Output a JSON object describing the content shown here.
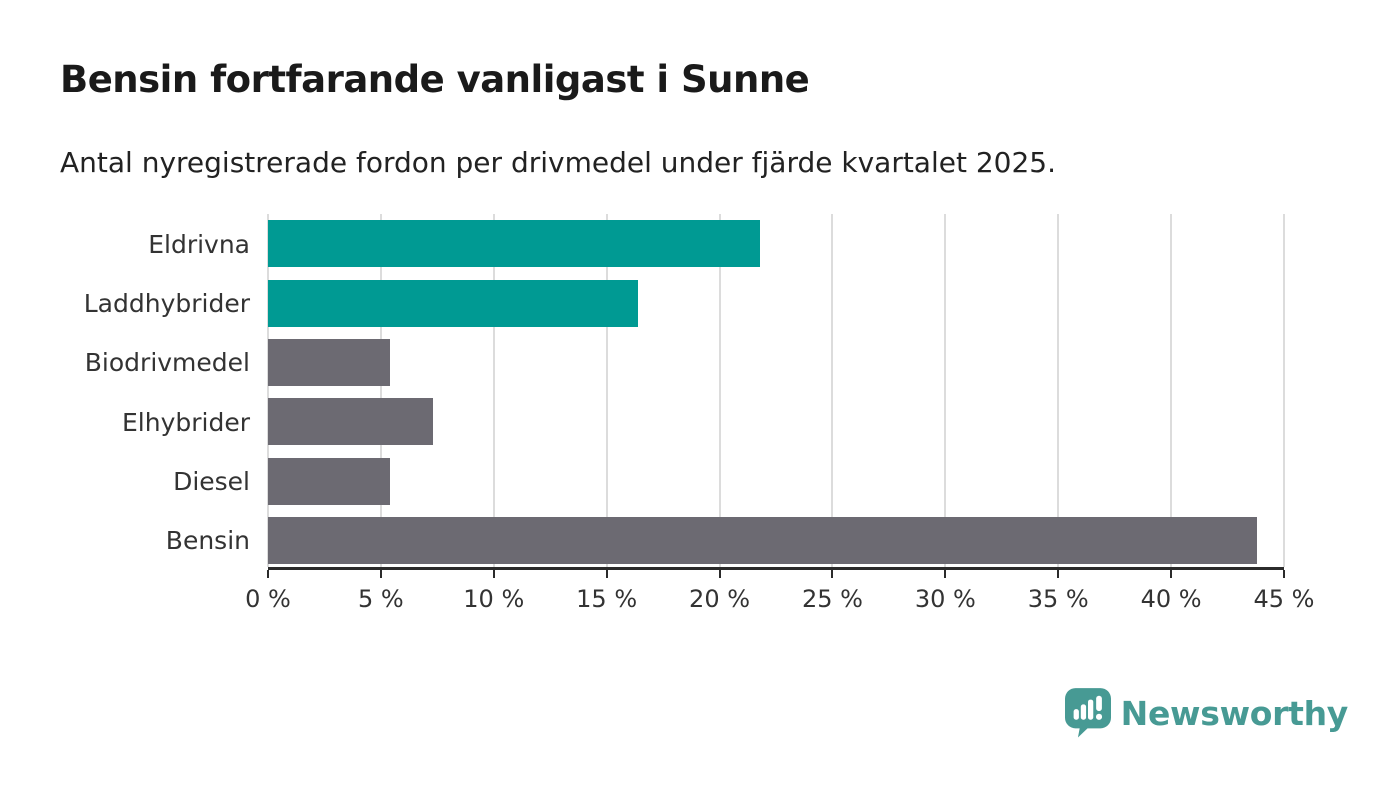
{
  "header": {
    "title": "Bensin fortfarande vanligast i Sunne",
    "subtitle": "Antal nyregistrerade fordon per drivmedel under fjärde kvartalet 2025."
  },
  "chart_data": {
    "type": "bar",
    "orientation": "horizontal",
    "title": "Bensin fortfarande vanligast i Sunne",
    "subtitle": "Antal nyregistrerade fordon per drivmedel under fjärde kvartalet 2025.",
    "categories": [
      "Eldrivna",
      "Laddhybrider",
      "Biodrivmedel",
      "Elhybrider",
      "Diesel",
      "Bensin"
    ],
    "values": [
      21.8,
      16.4,
      5.4,
      7.3,
      5.4,
      43.8
    ],
    "unit": "%",
    "bar_colors": [
      "#009a93",
      "#009a93",
      "#6c6a72",
      "#6c6a72",
      "#6c6a72",
      "#6c6a72"
    ],
    "xlabel": "",
    "ylabel": "",
    "xlim": [
      0,
      45
    ],
    "x_ticks": [
      0,
      5,
      10,
      15,
      20,
      25,
      30,
      35,
      40,
      45
    ],
    "x_tick_suffix": " %",
    "grid": true,
    "legend": false
  },
  "colors": {
    "accent_teal": "#009a93",
    "neutral_gray": "#6c6a72",
    "gridline": "#dcdcdc",
    "axis": "#2b2b2b",
    "label_text": "#333333",
    "title_text": "#1a1a1a",
    "logo_teal": "#479a94",
    "background": "#ffffff"
  },
  "branding": {
    "logo_text": "Newsworthy"
  }
}
